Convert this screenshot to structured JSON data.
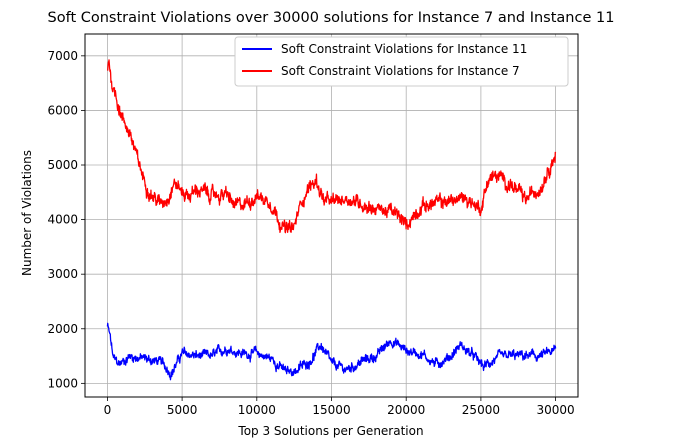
{
  "chart_data": {
    "type": "line",
    "title": "Soft Constraint Violations over 30000 solutions for Instance 7 and Instance 11",
    "xlabel": "Top 3 Solutions per Generation",
    "ylabel": "Number of Violations",
    "xlim": [
      -1500,
      31500
    ],
    "ylim": [
      750,
      7400
    ],
    "xticks": [
      0,
      5000,
      10000,
      15000,
      20000,
      25000,
      30000
    ],
    "yticks": [
      1000,
      2000,
      3000,
      4000,
      5000,
      6000,
      7000
    ],
    "grid": true,
    "legend_position": "top-right",
    "series": [
      {
        "name": "Soft Constraint Violations for Instance 11",
        "color": "#0000ff",
        "noise": 85,
        "x": [
          0,
          150,
          400,
          800,
          1500,
          2500,
          3500,
          4300,
          5000,
          6000,
          7000,
          8000,
          9000,
          10000,
          11000,
          12000,
          12700,
          13500,
          14300,
          15000,
          16000,
          17000,
          18000,
          19000,
          20000,
          21000,
          22000,
          23000,
          23600,
          24500,
          25200,
          26000,
          27000,
          28000,
          29000,
          30000
        ],
        "values": [
          2050,
          1900,
          1450,
          1350,
          1500,
          1450,
          1400,
          1200,
          1550,
          1500,
          1500,
          1650,
          1550,
          1550,
          1450,
          1200,
          1250,
          1400,
          1700,
          1350,
          1250,
          1400,
          1500,
          1800,
          1600,
          1550,
          1350,
          1500,
          1700,
          1500,
          1300,
          1450,
          1500,
          1500,
          1500,
          1600
        ]
      },
      {
        "name": "Soft Constraint Violations for Instance 7",
        "color": "#ff0000",
        "noise": 120,
        "x": [
          0,
          100,
          300,
          600,
          1000,
          1500,
          2000,
          2500,
          3000,
          3500,
          4000,
          4500,
          5000,
          5500,
          6000,
          7000,
          8000,
          8500,
          9000,
          10000,
          11000,
          11500,
          12000,
          12500,
          13000,
          13500,
          14000,
          14500,
          15000,
          16000,
          17000,
          18000,
          19000,
          19500,
          20000,
          21000,
          22000,
          23000,
          24000,
          25000,
          25500,
          26000,
          27000,
          27500,
          28000,
          28500,
          29000,
          29500,
          30000
        ],
        "values": [
          6700,
          6950,
          6500,
          6250,
          5850,
          5600,
          5100,
          4700,
          4450,
          4300,
          4400,
          4700,
          4500,
          4450,
          4550,
          4450,
          4450,
          4250,
          4250,
          4450,
          4300,
          4000,
          3800,
          3850,
          4350,
          4600,
          4700,
          4350,
          4300,
          4400,
          4300,
          4200,
          4150,
          4050,
          3900,
          4250,
          4300,
          4350,
          4400,
          4200,
          4750,
          4800,
          4650,
          4500,
          4350,
          4500,
          4600,
          4950,
          5200
        ]
      }
    ]
  }
}
